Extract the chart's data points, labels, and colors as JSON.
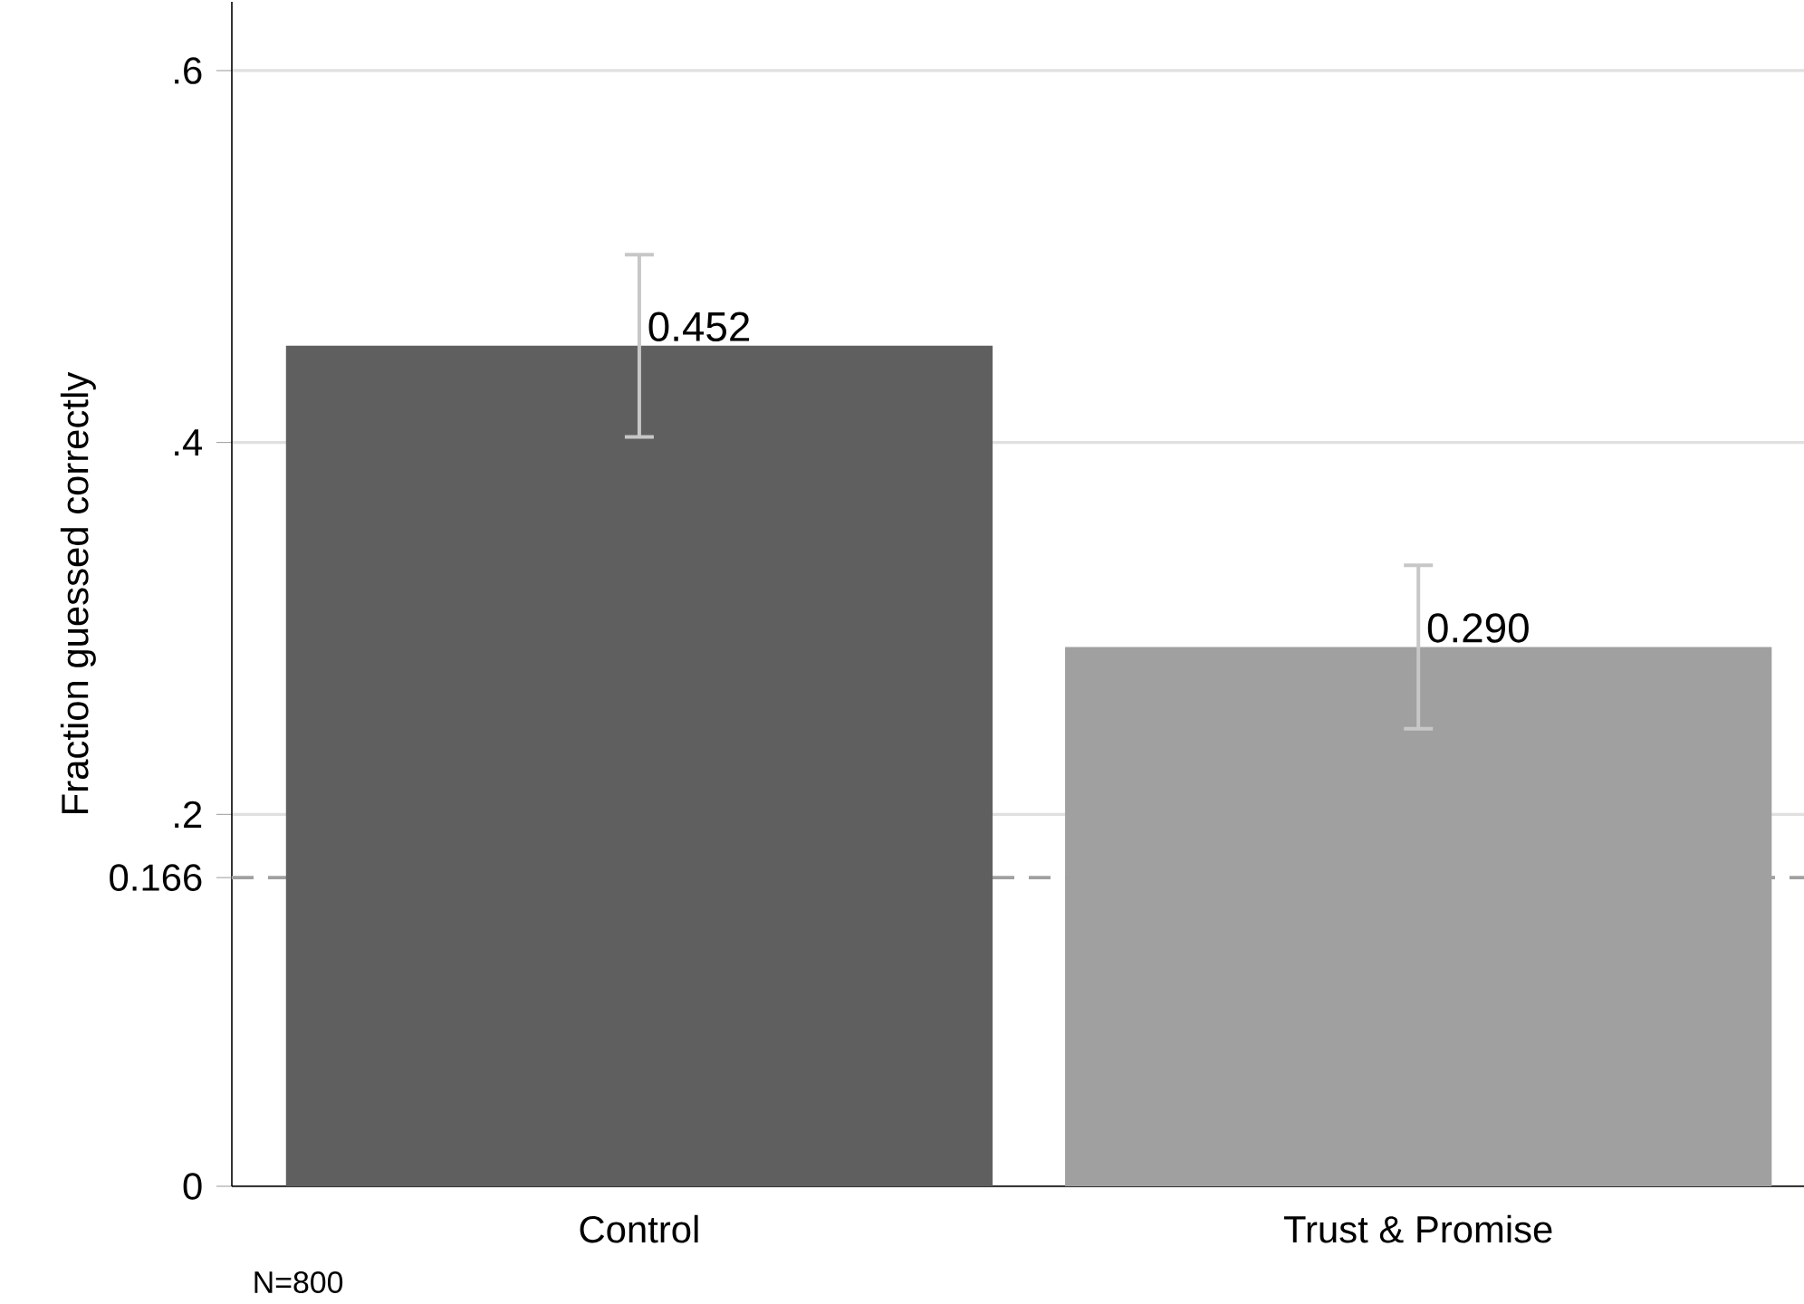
{
  "chart_data": {
    "type": "bar",
    "categories": [
      "Control",
      "Trust & Promise"
    ],
    "values": [
      0.452,
      0.29
    ],
    "colors": [
      "#5f5f5f",
      "#a0a0a0"
    ],
    "errors": [
      0.049,
      0.044
    ],
    "value_labels": [
      "0.452",
      "0.290"
    ],
    "ylabel": "Fraction guessed correctly",
    "ylim": [
      0,
      0.637
    ],
    "yticks": [
      0,
      {
        "value": 0.2,
        "label": ".2"
      },
      {
        "value": 0.4,
        "label": ".4"
      },
      {
        "value": 0.6,
        "label": ".6"
      }
    ],
    "grid": "y",
    "ref_lines": [
      {
        "axis": "y",
        "value": 0.166,
        "label": "0.166",
        "color": "#a0a0a0",
        "line_style": "dashed"
      }
    ],
    "annotations": [
      "N=800"
    ]
  }
}
